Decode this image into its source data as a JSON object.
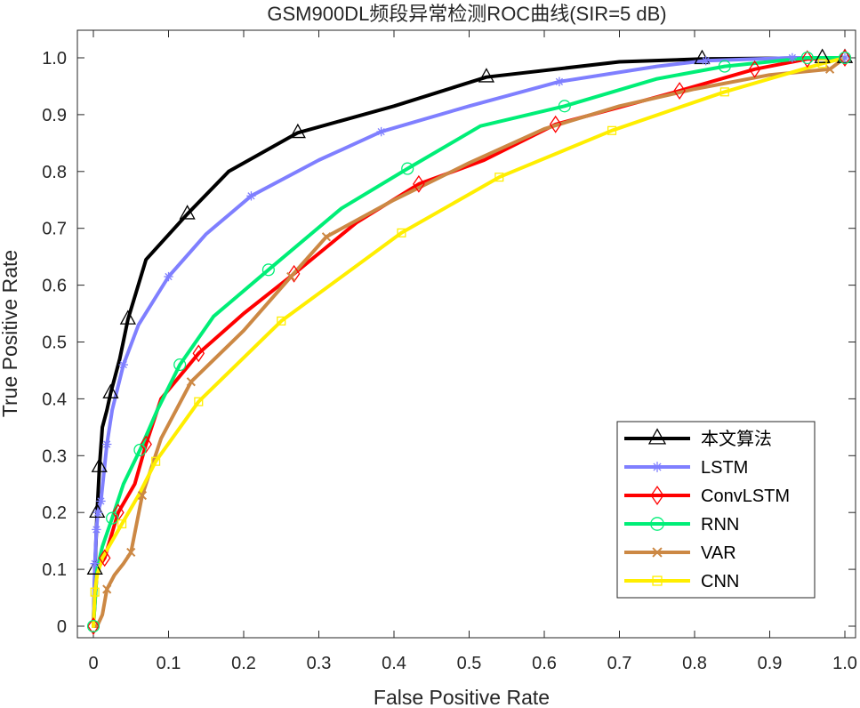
{
  "chart_data": {
    "type": "line",
    "title": "GSM900DL频段异常检测ROC曲线(SIR=5 dB)",
    "xlabel": "False Positive Rate",
    "ylabel": "True Positive Rate",
    "xlim": [
      0,
      1
    ],
    "ylim": [
      0,
      1
    ],
    "xticks": [
      "0",
      "0.1",
      "0.2",
      "0.3",
      "0.4",
      "0.5",
      "0.6",
      "0.7",
      "0.8",
      "0.9",
      "1.0"
    ],
    "yticks": [
      "0",
      "0.1",
      "0.2",
      "0.3",
      "0.4",
      "0.5",
      "0.6",
      "0.7",
      "0.8",
      "0.9",
      "1.0"
    ],
    "grid": false,
    "legend_position": "bottom-right",
    "series": [
      {
        "name": "本文算法",
        "color": "#000000",
        "marker": "triangle",
        "x": [
          0,
          0.002,
          0.005,
          0.008,
          0.012,
          0.018,
          0.023,
          0.035,
          0.046,
          0.07,
          0.125,
          0.18,
          0.272,
          0.4,
          0.523,
          0.7,
          0.81,
          0.97,
          1.0
        ],
        "y": [
          0,
          0.1,
          0.2,
          0.28,
          0.35,
          0.38,
          0.41,
          0.47,
          0.54,
          0.645,
          0.725,
          0.8,
          0.868,
          0.915,
          0.966,
          0.993,
          0.998,
          1.0,
          1.0
        ],
        "marker_x": [
          0.002,
          0.005,
          0.008,
          0.023,
          0.046,
          0.125,
          0.272,
          0.523,
          0.81,
          0.97,
          1.0
        ],
        "marker_y": [
          0.1,
          0.2,
          0.28,
          0.41,
          0.54,
          0.725,
          0.868,
          0.966,
          0.998,
          1.0,
          1.0
        ]
      },
      {
        "name": "LSTM",
        "color": "#7f7fff",
        "marker": "asterisk",
        "x": [
          0,
          0.002,
          0.004,
          0.006,
          0.01,
          0.018,
          0.025,
          0.04,
          0.06,
          0.1,
          0.15,
          0.21,
          0.3,
          0.383,
          0.5,
          0.62,
          0.75,
          0.815,
          0.93,
          1.0
        ],
        "y": [
          0,
          0.11,
          0.17,
          0.2,
          0.22,
          0.32,
          0.38,
          0.46,
          0.53,
          0.615,
          0.69,
          0.757,
          0.82,
          0.87,
          0.915,
          0.958,
          0.985,
          0.995,
          1.0,
          1.0
        ],
        "marker_x": [
          0.002,
          0.004,
          0.006,
          0.01,
          0.018,
          0.04,
          0.1,
          0.21,
          0.383,
          0.62,
          0.815,
          0.93,
          1.0
        ],
        "marker_y": [
          0.11,
          0.17,
          0.2,
          0.22,
          0.32,
          0.46,
          0.615,
          0.757,
          0.87,
          0.958,
          0.995,
          1.0,
          1.0
        ]
      },
      {
        "name": "ConvLSTM",
        "color": "#ff0000",
        "marker": "diamond",
        "x": [
          0,
          0.005,
          0.015,
          0.033,
          0.055,
          0.07,
          0.09,
          0.14,
          0.2,
          0.267,
          0.35,
          0.433,
          0.52,
          0.615,
          0.7,
          0.78,
          0.88,
          0.95,
          1.0
        ],
        "y": [
          0,
          0.1,
          0.12,
          0.2,
          0.25,
          0.32,
          0.4,
          0.48,
          0.55,
          0.62,
          0.71,
          0.778,
          0.82,
          0.883,
          0.913,
          0.942,
          0.98,
          0.998,
          1.0
        ],
        "marker_x": [
          0,
          0.015,
          0.033,
          0.07,
          0.14,
          0.267,
          0.433,
          0.615,
          0.78,
          0.88,
          0.95,
          1.0
        ],
        "marker_y": [
          0,
          0.12,
          0.2,
          0.32,
          0.48,
          0.62,
          0.778,
          0.883,
          0.942,
          0.98,
          0.998,
          1.0
        ]
      },
      {
        "name": "RNN",
        "color": "#00ee77",
        "marker": "circle",
        "x": [
          0,
          0.005,
          0.012,
          0.025,
          0.04,
          0.062,
          0.085,
          0.115,
          0.16,
          0.233,
          0.33,
          0.418,
          0.515,
          0.627,
          0.75,
          0.84,
          0.95,
          1.0
        ],
        "y": [
          0,
          0.1,
          0.14,
          0.19,
          0.25,
          0.31,
          0.38,
          0.46,
          0.545,
          0.627,
          0.735,
          0.805,
          0.88,
          0.915,
          0.963,
          0.985,
          1.0,
          1.0
        ],
        "marker_x": [
          0,
          0.025,
          0.062,
          0.115,
          0.233,
          0.418,
          0.627,
          0.84,
          0.95,
          1.0
        ],
        "marker_y": [
          0,
          0.19,
          0.31,
          0.46,
          0.627,
          0.805,
          0.915,
          0.985,
          1.0,
          1.0
        ]
      },
      {
        "name": "VAR",
        "color": "#cc8844",
        "marker": "x",
        "x": [
          0,
          0.005,
          0.012,
          0.018,
          0.028,
          0.04,
          0.05,
          0.065,
          0.09,
          0.13,
          0.2,
          0.263,
          0.31,
          0.4,
          0.5,
          0.6,
          0.7,
          0.8,
          0.9,
          0.98,
          1.0
        ],
        "y": [
          0,
          0.0,
          0.02,
          0.065,
          0.09,
          0.11,
          0.13,
          0.23,
          0.33,
          0.43,
          0.52,
          0.615,
          0.685,
          0.75,
          0.815,
          0.875,
          0.915,
          0.945,
          0.97,
          0.98,
          1.0
        ],
        "marker_x": [
          0.018,
          0.05,
          0.065,
          0.13,
          0.263,
          0.31,
          0.98
        ],
        "marker_y": [
          0.065,
          0.13,
          0.23,
          0.43,
          0.615,
          0.685,
          0.98
        ]
      },
      {
        "name": "CNN",
        "color": "#ffee00",
        "marker": "square",
        "x": [
          0,
          0.002,
          0.005,
          0.012,
          0.025,
          0.038,
          0.06,
          0.083,
          0.14,
          0.25,
          0.41,
          0.54,
          0.69,
          0.84,
          0.97,
          1.0
        ],
        "y": [
          0,
          0.06,
          0.09,
          0.12,
          0.15,
          0.18,
          0.23,
          0.29,
          0.395,
          0.537,
          0.692,
          0.79,
          0.872,
          0.94,
          0.99,
          1.0
        ],
        "marker_x": [
          0.002,
          0.038,
          0.083,
          0.14,
          0.25,
          0.41,
          0.54,
          0.69,
          0.84,
          0.97
        ],
        "marker_y": [
          0.06,
          0.18,
          0.29,
          0.395,
          0.537,
          0.692,
          0.79,
          0.872,
          0.94,
          0.99
        ]
      }
    ]
  }
}
